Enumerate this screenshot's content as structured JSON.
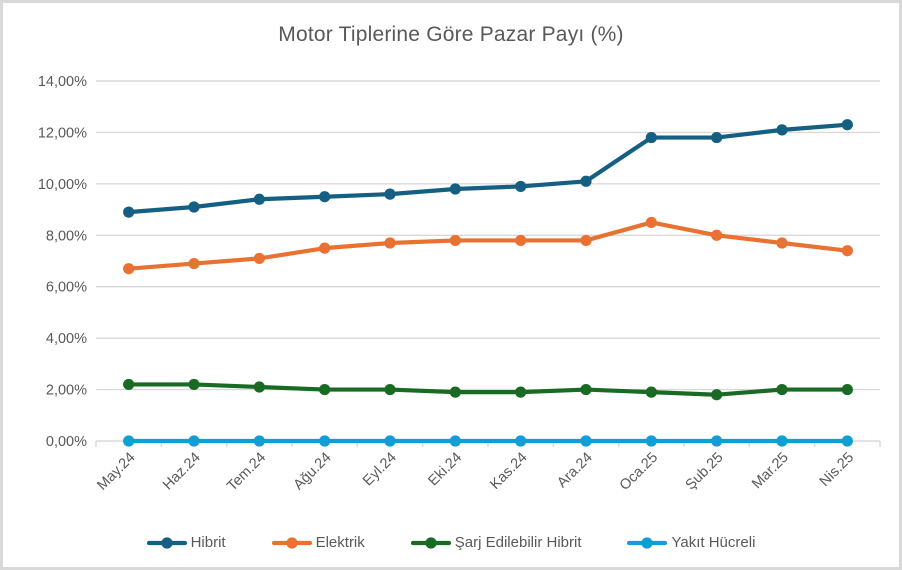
{
  "title": "Motor Tiplerine Göre Pazar Payı (%)",
  "chart_data": {
    "type": "line",
    "title": "Motor Tiplerine Göre Pazar Payı (%)",
    "categories": [
      "May.24",
      "Haz.24",
      "Tem.24",
      "Ağu.24",
      "Eyl.24",
      "Eki.24",
      "Kas.24",
      "Ara.24",
      "Oca.25",
      "Şub.25",
      "Mar.25",
      "Nis.25"
    ],
    "series": [
      {
        "name": "Hibrit",
        "color": "#156082",
        "values": [
          8.9,
          9.1,
          9.4,
          9.5,
          9.6,
          9.8,
          9.9,
          10.1,
          11.8,
          11.8,
          12.1,
          12.3
        ]
      },
      {
        "name": "Elektrik",
        "color": "#E97132",
        "values": [
          6.7,
          6.9,
          7.1,
          7.5,
          7.7,
          7.8,
          7.8,
          7.8,
          8.5,
          8.0,
          7.7,
          7.4
        ]
      },
      {
        "name": "Şarj Edilebilir Hibrit",
        "color": "#196B24",
        "values": [
          2.2,
          2.2,
          2.1,
          2.0,
          2.0,
          1.9,
          1.9,
          2.0,
          1.9,
          1.8,
          2.0,
          2.0
        ]
      },
      {
        "name": "Yakıt Hücreli",
        "color": "#0F9ED5",
        "values": [
          0,
          0,
          0,
          0,
          0,
          0,
          0,
          0,
          0,
          0,
          0,
          0
        ]
      }
    ],
    "ylim": [
      0,
      14
    ],
    "y_tick_step": 2,
    "y_tick_labels": [
      "0,00%",
      "2,00%",
      "4,00%",
      "6,00%",
      "8,00%",
      "10,00%",
      "12,00%",
      "14,00%"
    ],
    "grid": true,
    "legend_position": "bottom",
    "axis_color": "#D9D9D9",
    "text_color": "#595959"
  }
}
